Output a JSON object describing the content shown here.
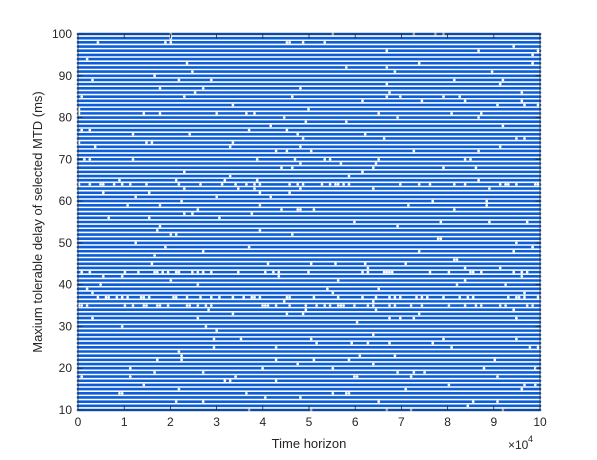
{
  "chart_data": {
    "type": "scatter",
    "title": "",
    "xlabel": "Time horizon",
    "ylabel": "Maxium tolerable delay of selected MTD (ms)",
    "xlim": [
      0,
      100000
    ],
    "ylim": [
      10,
      100
    ],
    "x_tick_labels": [
      "0",
      "1",
      "2",
      "3",
      "4",
      "5",
      "6",
      "7",
      "8",
      "9",
      "10"
    ],
    "y_tick_labels": [
      "10",
      "20",
      "30",
      "40",
      "50",
      "60",
      "70",
      "80",
      "90",
      "100"
    ],
    "x_exponent_base": "×10",
    "x_exponent_power": "4",
    "grid": false,
    "legend": "none",
    "series": [
      {
        "marker": "dot",
        "color": "#0b5ed7",
        "y_levels": [
          10,
          11,
          12,
          13,
          14,
          15,
          16,
          17,
          18,
          19,
          20,
          21,
          22,
          23,
          24,
          25,
          26,
          27,
          28,
          29,
          30,
          31,
          32,
          33,
          34,
          35,
          36,
          37,
          38,
          39,
          40,
          41,
          42,
          43,
          44,
          45,
          46,
          47,
          48,
          49,
          50,
          51,
          52,
          53,
          54,
          55,
          56,
          57,
          58,
          59,
          60,
          61,
          62,
          63,
          64,
          65,
          66,
          67,
          68,
          69,
          70,
          71,
          72,
          73,
          74,
          75,
          76,
          77,
          78,
          79,
          80,
          81,
          82,
          83,
          84,
          85,
          86,
          87,
          88,
          89,
          90,
          91,
          92,
          93,
          94,
          95,
          96,
          97,
          98,
          99,
          100
        ],
        "x_range": [
          0,
          100000
        ],
        "sparse_levels": [
          35,
          37,
          43,
          64
        ]
      }
    ]
  }
}
